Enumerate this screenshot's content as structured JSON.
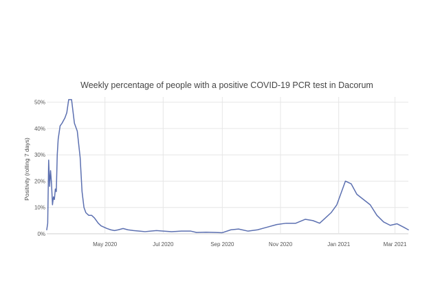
{
  "chart_data": {
    "type": "line",
    "title": "Weekly percentage of people with a positive COVID-19 PCR test in  Dacorum",
    "xlabel": "",
    "ylabel": "Positivity (rolling 7 days)",
    "x_range": [
      "2020-03-01",
      "2021-03-15"
    ],
    "ylim": [
      0,
      52
    ],
    "grid": true,
    "legend": "none",
    "line_color": "#5b6fb0",
    "y_ticks": [
      {
        "value": 0,
        "label": "0%"
      },
      {
        "value": 10,
        "label": "10%"
      },
      {
        "value": 20,
        "label": "20%"
      },
      {
        "value": 30,
        "label": "30%"
      },
      {
        "value": 40,
        "label": "40%"
      },
      {
        "value": 50,
        "label": "50%"
      }
    ],
    "x_ticks": [
      {
        "value": "2020-05-01",
        "label": "May 2020"
      },
      {
        "value": "2020-07-01",
        "label": "Jul 2020"
      },
      {
        "value": "2020-09-01",
        "label": "Sep 2020"
      },
      {
        "value": "2020-11-01",
        "label": "Nov 2020"
      },
      {
        "value": "2021-01-01",
        "label": "Jan 2021"
      },
      {
        "value": "2021-03-01",
        "label": "Mar 2021"
      }
    ],
    "series": [
      {
        "x": [
          "2020-03-01",
          "2020-03-02",
          "2020-03-03",
          "2020-03-04",
          "2020-03-05",
          "2020-03-06",
          "2020-03-07",
          "2020-03-08",
          "2020-03-09",
          "2020-03-10",
          "2020-03-11",
          "2020-03-12",
          "2020-03-13",
          "2020-03-15",
          "2020-03-17",
          "2020-03-20",
          "2020-03-22",
          "2020-03-24",
          "2020-03-27",
          "2020-03-30",
          "2020-04-02",
          "2020-04-05",
          "2020-04-07",
          "2020-04-09",
          "2020-04-11",
          "2020-04-14",
          "2020-04-17",
          "2020-04-20",
          "2020-04-24",
          "2020-04-27",
          "2020-04-30",
          "2020-05-03",
          "2020-05-07",
          "2020-05-11",
          "2020-05-15",
          "2020-05-20",
          "2020-05-25",
          "2020-05-31",
          "2020-06-06",
          "2020-06-12",
          "2020-06-18",
          "2020-06-24",
          "2020-07-01",
          "2020-07-10",
          "2020-07-20",
          "2020-07-30",
          "2020-08-05",
          "2020-08-15",
          "2020-08-25",
          "2020-09-01",
          "2020-09-10",
          "2020-09-18",
          "2020-09-28",
          "2020-10-08",
          "2020-10-18",
          "2020-10-28",
          "2020-11-07",
          "2020-11-17",
          "2020-11-27",
          "2020-12-05",
          "2020-12-12",
          "2020-12-18",
          "2020-12-24",
          "2020-12-30",
          "2021-01-03",
          "2021-01-08",
          "2021-01-14",
          "2021-01-20",
          "2021-01-27",
          "2021-02-03",
          "2021-02-10",
          "2021-02-17",
          "2021-02-24",
          "2021-03-03",
          "2021-03-10",
          "2021-03-15"
        ],
        "y": [
          1.5,
          4,
          28,
          18,
          24,
          19,
          11,
          14,
          13,
          17,
          16,
          30,
          36,
          41,
          42,
          44,
          46,
          51,
          51,
          42,
          39,
          29,
          16,
          10,
          8,
          7,
          7,
          6,
          4,
          3,
          2.5,
          2,
          1.5,
          1.2,
          1.5,
          2,
          1.5,
          1.2,
          1,
          0.8,
          1,
          1.2,
          1,
          0.8,
          1,
          1,
          0.5,
          0.6,
          0.5,
          0.4,
          1.5,
          1.8,
          1,
          1.5,
          2.5,
          3.5,
          4,
          4,
          5.5,
          5,
          4,
          6,
          8,
          11,
          15,
          20,
          19,
          15,
          13,
          11,
          7,
          4.5,
          3.2,
          3.8,
          2.5,
          1.5
        ]
      }
    ]
  }
}
